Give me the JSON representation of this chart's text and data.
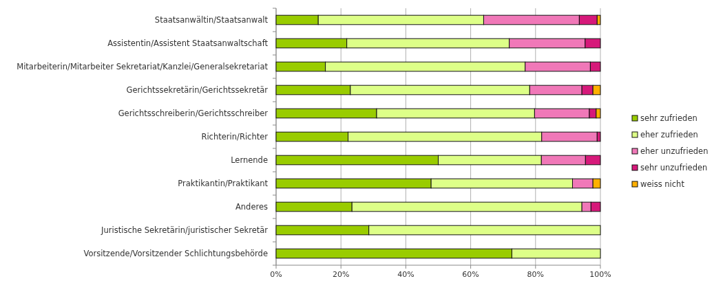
{
  "chart_data": {
    "type": "bar",
    "orientation": "horizontal",
    "stacked": true,
    "categories": [
      "Staatsanwältin/Staatsanwalt",
      "Assistentin/Assistent Staatsanwaltschaft",
      "Mitarbeiterin/Mitarbeiter Sekretariat/Kanzlei/Generalsekretariat",
      "Gerichtssekretärin/Gerichtssekretär",
      "Gerichtsschreiberin/Gerichtsschreiber",
      "Richterin/Richter",
      "Lernende",
      "Praktikantin/Praktikant",
      "Anderes",
      "Juristische Sekretärin/juristischer Sekretär",
      "Vorsitzende/Vorsitzender Schlichtungsbehörde"
    ],
    "series": [
      {
        "name": "sehr zufrieden",
        "color": "#99cc00",
        "values": [
          13,
          21.8,
          15.2,
          22.9,
          31,
          22.2,
          50,
          47.8,
          23.4,
          28.6,
          72.7
        ]
      },
      {
        "name": "eher zufrieden",
        "color": "#ddff88",
        "values": [
          51,
          50.1,
          61.6,
          55.3,
          48.7,
          59.7,
          31.8,
          43.6,
          70.9,
          71.4,
          27.3
        ]
      },
      {
        "name": "eher unzufrieden",
        "color": "#f078b8",
        "values": [
          29.5,
          23.4,
          20.1,
          16.1,
          16.9,
          17.1,
          13.6,
          6.3,
          2.8,
          0,
          0
        ]
      },
      {
        "name": "sehr unzufrieden",
        "color": "#d6197a",
        "values": [
          5.5,
          4.7,
          3.1,
          3.4,
          2.1,
          1,
          4.6,
          0,
          2.9,
          0,
          0
        ]
      },
      {
        "name": "weiss nicht",
        "color": "#ffb000",
        "values": [
          1,
          0,
          0,
          2.3,
          1.3,
          0,
          0,
          2.3,
          0,
          0,
          0
        ]
      }
    ],
    "xlim": [
      0,
      100
    ],
    "xticks": [
      {
        "value": 0,
        "label": "0%"
      },
      {
        "value": 20,
        "label": "20%"
      },
      {
        "value": 40,
        "label": "40%"
      },
      {
        "value": 60,
        "label": "60%"
      },
      {
        "value": 80,
        "label": "80%"
      },
      {
        "value": 100,
        "label": "100%"
      }
    ],
    "grid": "x",
    "legend": "right"
  }
}
